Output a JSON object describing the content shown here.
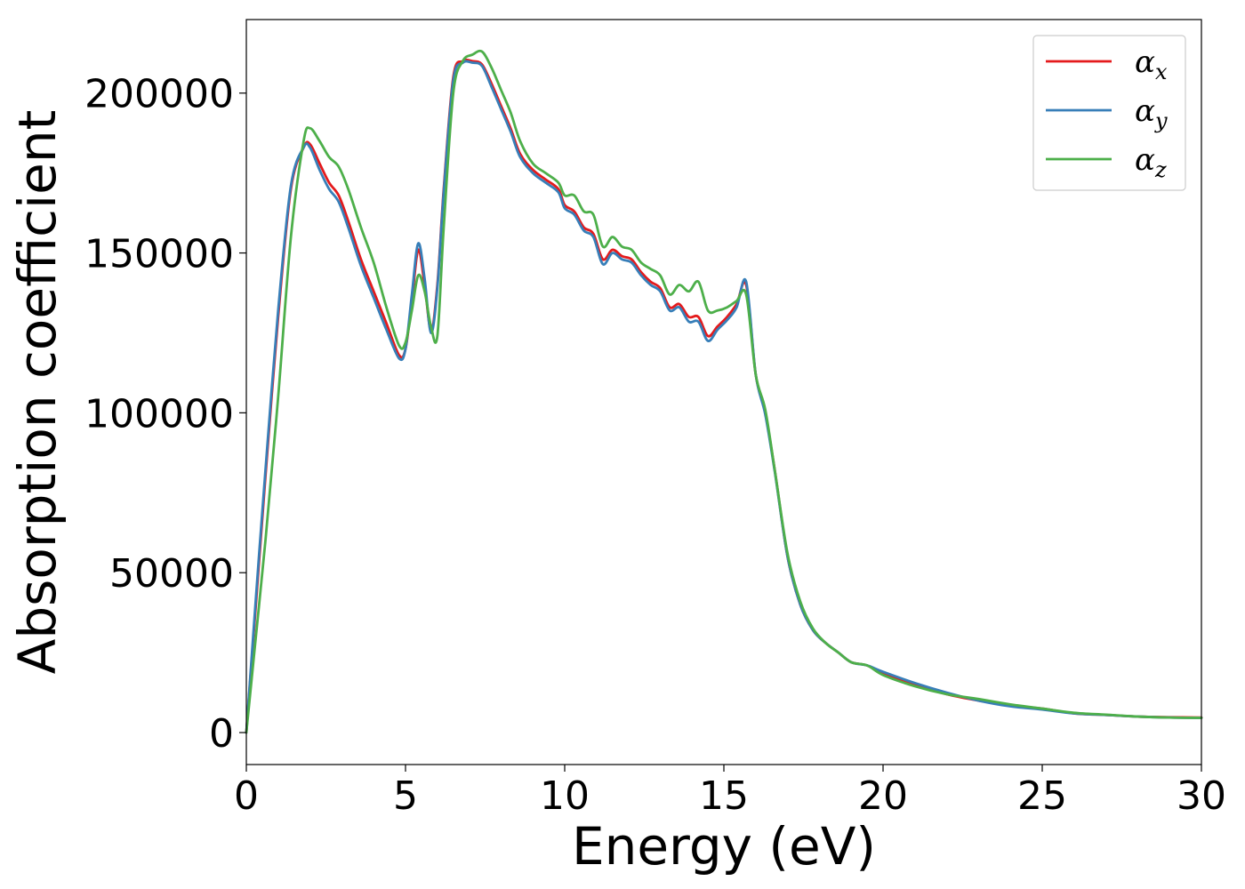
{
  "chart_data": {
    "type": "line",
    "title": "",
    "xlabel": "Energy (eV)",
    "ylabel": "Absorption coefficient",
    "xlim": [
      0,
      30
    ],
    "ylim": [
      -10000,
      223000
    ],
    "x_ticks": [
      0,
      5,
      10,
      15,
      20,
      25,
      30
    ],
    "x_tick_labels": [
      "0",
      "5",
      "10",
      "15",
      "20",
      "25",
      "30"
    ],
    "y_ticks": [
      0,
      50000,
      100000,
      150000,
      200000
    ],
    "y_tick_labels": [
      "0",
      "50000",
      "100000",
      "150000",
      "200000"
    ],
    "grid": false,
    "legend_position": "top-right",
    "series": [
      {
        "name": "α_x",
        "legend_base": "α",
        "legend_sub": "x",
        "color": "#e41a1c",
        "x": [
          0,
          0.3,
          0.6,
          1.0,
          1.4,
          1.8,
          2.0,
          2.3,
          2.6,
          2.9,
          3.2,
          3.6,
          4.0,
          4.4,
          4.8,
          5.0,
          5.2,
          5.4,
          5.6,
          5.8,
          6.0,
          6.2,
          6.5,
          6.8,
          7.1,
          7.4,
          7.7,
          8.0,
          8.3,
          8.6,
          9.0,
          9.4,
          9.8,
          10.0,
          10.3,
          10.6,
          10.9,
          11.2,
          11.5,
          11.8,
          12.1,
          12.4,
          12.7,
          13.0,
          13.3,
          13.6,
          13.9,
          14.2,
          14.5,
          14.8,
          15.1,
          15.4,
          15.7,
          16.0,
          16.3,
          16.6,
          17.0,
          17.4,
          17.8,
          18.2,
          18.6,
          19.0,
          19.5,
          20.0,
          21.0,
          22.0,
          23.0,
          24.0,
          25.0,
          26.0,
          27.0,
          28.0,
          29.0,
          30.0
        ],
        "y": [
          0,
          40000,
          80000,
          130000,
          170000,
          183000,
          184000,
          178000,
          172000,
          168000,
          160000,
          148000,
          138000,
          128000,
          118000,
          120000,
          135000,
          151000,
          140000,
          126000,
          140000,
          170000,
          205000,
          210000,
          210000,
          209000,
          203000,
          196000,
          189000,
          181000,
          176000,
          173000,
          170000,
          165000,
          163000,
          158000,
          156000,
          148000,
          151000,
          149000,
          148000,
          144000,
          141000,
          139000,
          133000,
          134000,
          130000,
          130000,
          124000,
          127000,
          130000,
          134000,
          140000,
          112000,
          100000,
          82000,
          55000,
          40000,
          32000,
          28000,
          25000,
          22000,
          21000,
          18500,
          15000,
          12000,
          10000,
          8500,
          7500,
          6000,
          5500,
          5000,
          4800,
          4700
        ]
      },
      {
        "name": "α_y",
        "legend_base": "α",
        "legend_sub": "y",
        "color": "#377eb8",
        "x": [
          0,
          0.3,
          0.6,
          1.0,
          1.4,
          1.8,
          2.0,
          2.3,
          2.6,
          2.9,
          3.2,
          3.6,
          4.0,
          4.4,
          4.8,
          5.0,
          5.2,
          5.4,
          5.6,
          5.8,
          6.0,
          6.2,
          6.5,
          6.8,
          7.1,
          7.4,
          7.7,
          8.0,
          8.3,
          8.6,
          9.0,
          9.4,
          9.8,
          10.0,
          10.3,
          10.6,
          10.9,
          11.2,
          11.5,
          11.8,
          12.1,
          12.4,
          12.7,
          13.0,
          13.3,
          13.6,
          13.9,
          14.2,
          14.5,
          14.8,
          15.1,
          15.4,
          15.7,
          16.0,
          16.3,
          16.6,
          17.0,
          17.4,
          17.8,
          18.2,
          18.6,
          19.0,
          19.5,
          20.0,
          21.0,
          22.0,
          23.0,
          24.0,
          25.0,
          26.0,
          27.0,
          28.0,
          29.0,
          30.0
        ],
        "y": [
          0,
          42000,
          82000,
          132000,
          171000,
          183000,
          183000,
          176000,
          170000,
          166000,
          158000,
          146000,
          136000,
          126000,
          117000,
          120000,
          137000,
          153000,
          142000,
          125000,
          139000,
          169000,
          204000,
          209500,
          209500,
          208500,
          202000,
          195000,
          188000,
          180000,
          175000,
          172000,
          169000,
          164000,
          162000,
          157000,
          155000,
          146500,
          150000,
          148000,
          147000,
          143000,
          140000,
          138000,
          132000,
          133000,
          128500,
          128500,
          122500,
          126000,
          129000,
          133000,
          141000,
          112000,
          99500,
          81500,
          55000,
          40000,
          32000,
          28000,
          25000,
          22000,
          21000,
          19000,
          15500,
          12500,
          10000,
          8200,
          7200,
          6000,
          5500,
          5000,
          4700,
          4600
        ]
      },
      {
        "name": "α_z",
        "legend_base": "α",
        "legend_sub": "z",
        "color": "#4daf4a",
        "x": [
          0,
          0.3,
          0.6,
          1.0,
          1.4,
          1.8,
          2.0,
          2.3,
          2.6,
          2.9,
          3.2,
          3.6,
          4.0,
          4.4,
          4.8,
          5.0,
          5.2,
          5.4,
          5.6,
          5.8,
          6.0,
          6.2,
          6.5,
          6.8,
          7.1,
          7.4,
          7.7,
          8.0,
          8.3,
          8.6,
          9.0,
          9.4,
          9.8,
          10.0,
          10.3,
          10.6,
          10.9,
          11.2,
          11.5,
          11.8,
          12.1,
          12.4,
          12.7,
          13.0,
          13.3,
          13.6,
          13.9,
          14.2,
          14.5,
          14.8,
          15.1,
          15.4,
          15.7,
          16.0,
          16.3,
          16.6,
          17.0,
          17.4,
          17.8,
          18.2,
          18.6,
          19.0,
          19.5,
          20.0,
          21.0,
          22.0,
          23.0,
          24.0,
          25.0,
          26.0,
          27.0,
          28.0,
          29.0,
          30.0
        ],
        "y": [
          0,
          30000,
          60000,
          105000,
          155000,
          185000,
          189000,
          185000,
          180000,
          177000,
          170000,
          158000,
          147000,
          133000,
          121000,
          122000,
          132000,
          143000,
          138000,
          127000,
          124000,
          158000,
          200000,
          210000,
          212000,
          213000,
          208000,
          201000,
          194000,
          185000,
          178000,
          175000,
          172000,
          168000,
          168000,
          163000,
          162000,
          152000,
          155000,
          152000,
          151000,
          147000,
          145000,
          143000,
          137000,
          140000,
          138000,
          141000,
          132000,
          132000,
          133000,
          135000,
          137000,
          112000,
          101000,
          82000,
          56000,
          41000,
          32500,
          28000,
          25000,
          22000,
          21000,
          18000,
          14500,
          12000,
          10500,
          8800,
          7500,
          6200,
          5600,
          5000,
          4700,
          4600
        ]
      }
    ]
  }
}
